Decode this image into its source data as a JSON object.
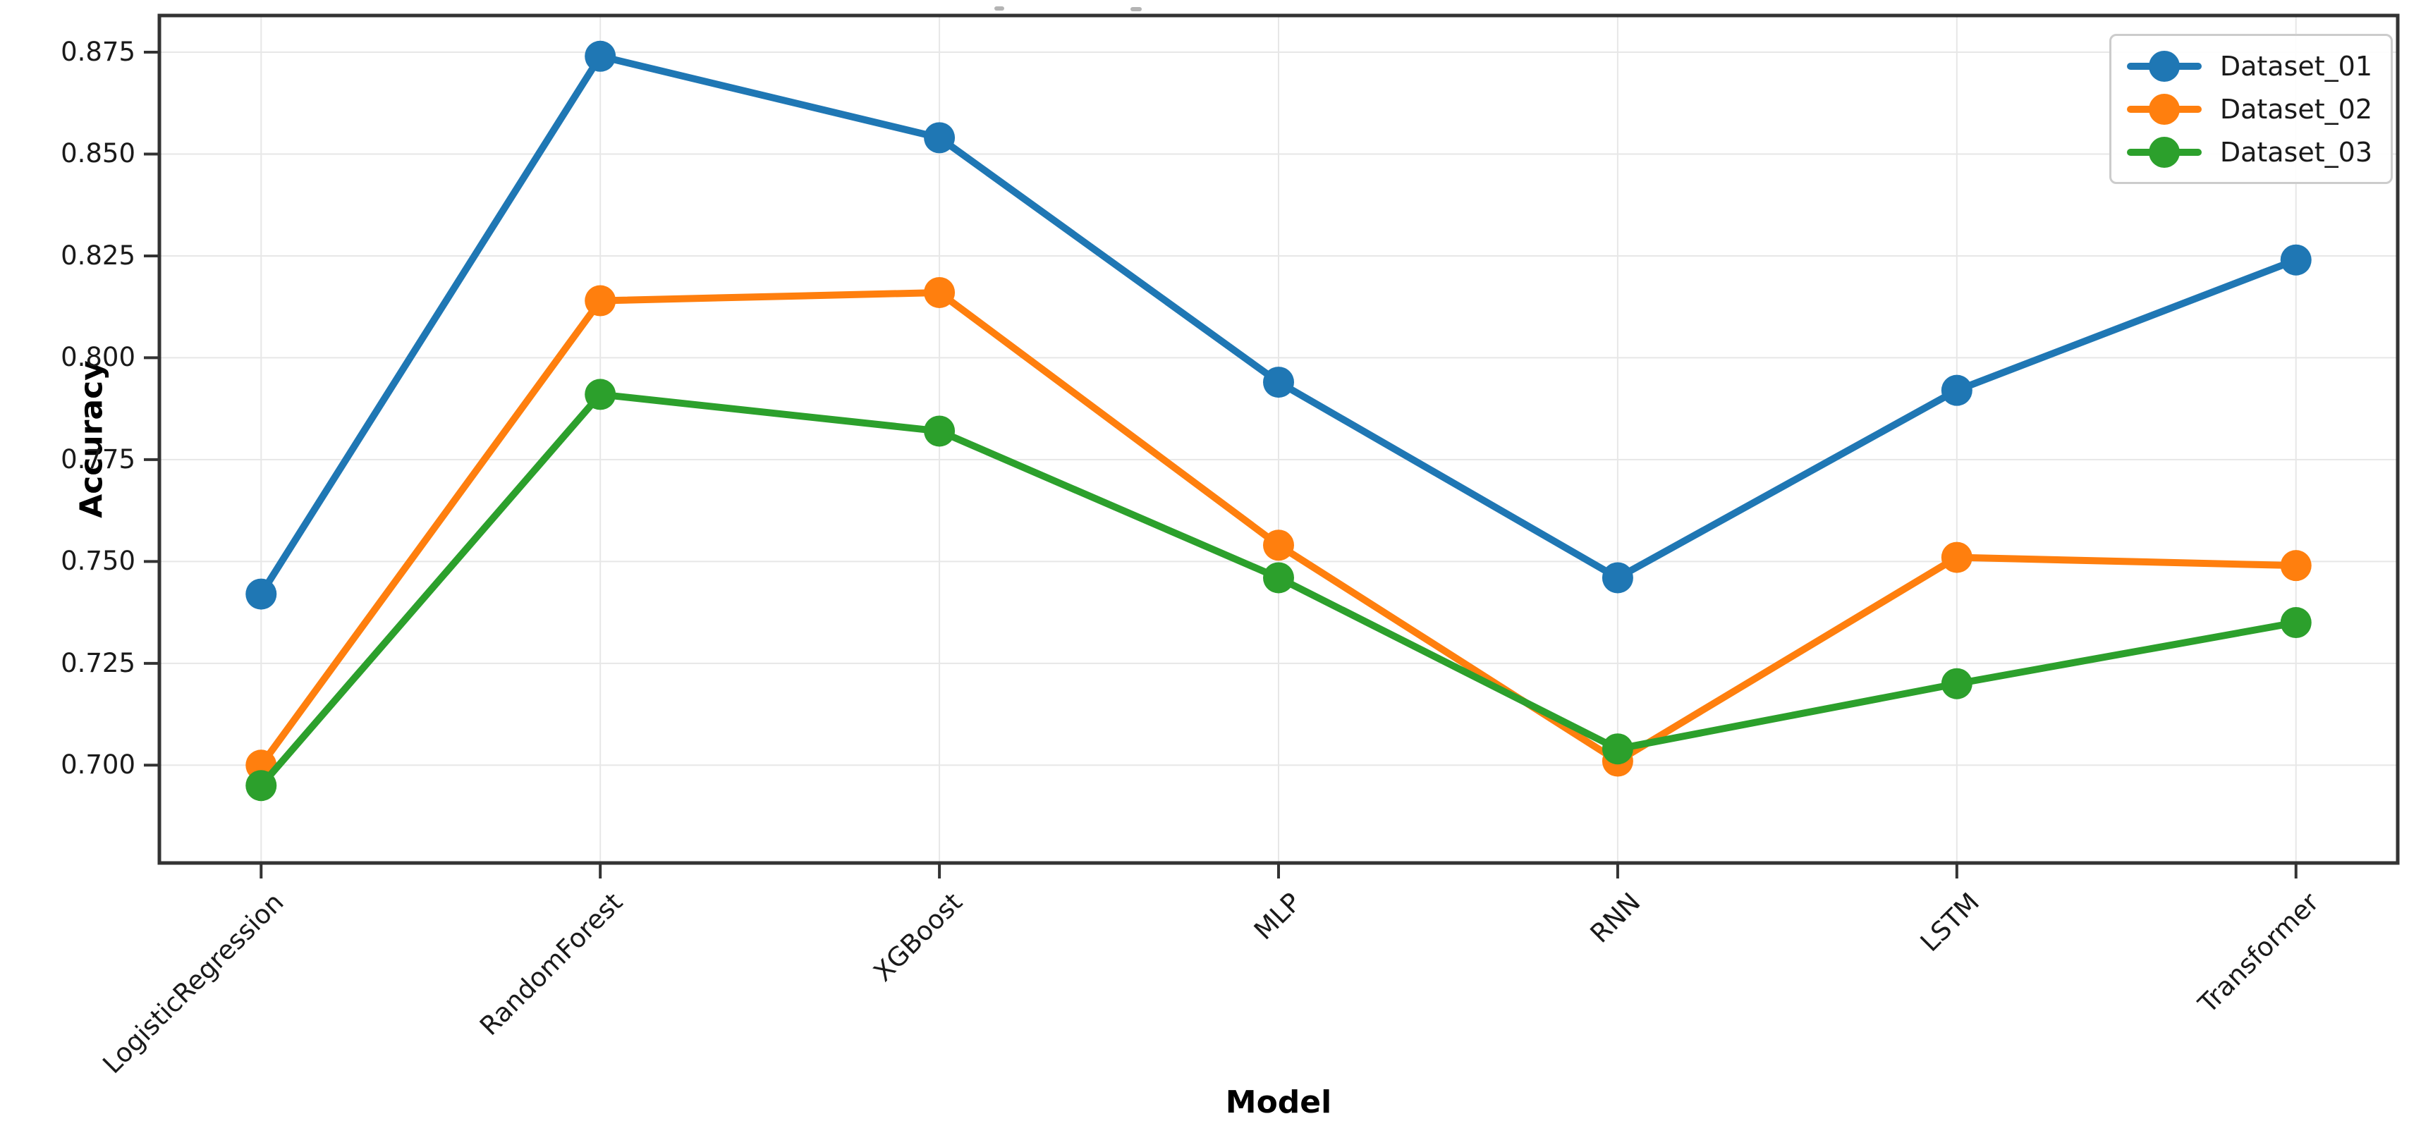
{
  "chart_data": {
    "type": "line",
    "xlabel": "Model",
    "ylabel": "Accuracy",
    "categories": [
      "LogisticRegression",
      "RandomForest",
      "XGBoost",
      "MLP",
      "RNN",
      "LSTM",
      "Transformer"
    ],
    "series": [
      {
        "name": "Dataset_01",
        "color": "#1f77b4",
        "values": [
          0.742,
          0.874,
          0.854,
          0.794,
          0.746,
          0.792,
          0.824
        ]
      },
      {
        "name": "Dataset_02",
        "color": "#ff7f0e",
        "values": [
          0.7,
          0.814,
          0.816,
          0.754,
          0.701,
          0.751,
          0.749
        ]
      },
      {
        "name": "Dataset_03",
        "color": "#2ca02c",
        "values": [
          0.695,
          0.791,
          0.782,
          0.746,
          0.704,
          0.72,
          0.735
        ]
      }
    ],
    "yticks": [
      0.7,
      0.725,
      0.75,
      0.775,
      0.8,
      0.825,
      0.85,
      0.875
    ],
    "ytick_format_decimals": 3,
    "ylim": [
      0.676,
      0.884
    ],
    "xlim": [
      -0.3,
      6.3
    ],
    "grid": true,
    "xtick_rotation_degrees": 45,
    "legend_position": "upper right",
    "style": {
      "grid_color": "#e7e7e7",
      "spine_color": "#333333",
      "tick_color": "#333333",
      "text_color": "#1a1a1a",
      "background_color": "#ffffff",
      "line_width": 10,
      "marker_radius": 22
    }
  }
}
